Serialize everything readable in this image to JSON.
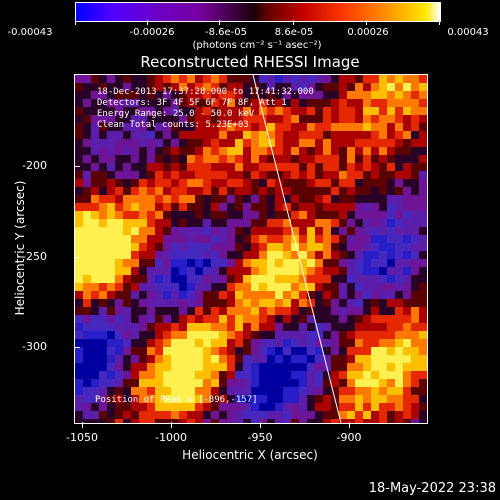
{
  "colorbar": {
    "tick_labels": [
      "-0.00043",
      "-0.00026",
      "-8.6e-05",
      "8.6e-05",
      "0.00026",
      "0.00043"
    ],
    "units_label": "(photons cm⁻² s⁻¹ asec⁻²)"
  },
  "title": "Reconstructed RHESSI Image",
  "info_lines": [
    "18-Dec-2013 17:37:28.000 to 17:41:32.000",
    "Detectors: 3F 4F 5F 6F 7F 8F, Att 1",
    "Energy Range: 25.0 - 50.0 keV",
    "Clean     Total counts: 5.23E+03"
  ],
  "peak_text": "Position of Peak = [-896,-157]",
  "x_axis": {
    "label": "Heliocentric X (arcsec)",
    "ticks": [
      "-1050",
      "-1000",
      "-950",
      "-900"
    ]
  },
  "y_axis": {
    "label": "Heliocentric Y (arcsec)",
    "ticks": [
      "-200",
      "-250",
      "-300"
    ]
  },
  "footer_timestamp": "18-May-2022 23:38"
}
